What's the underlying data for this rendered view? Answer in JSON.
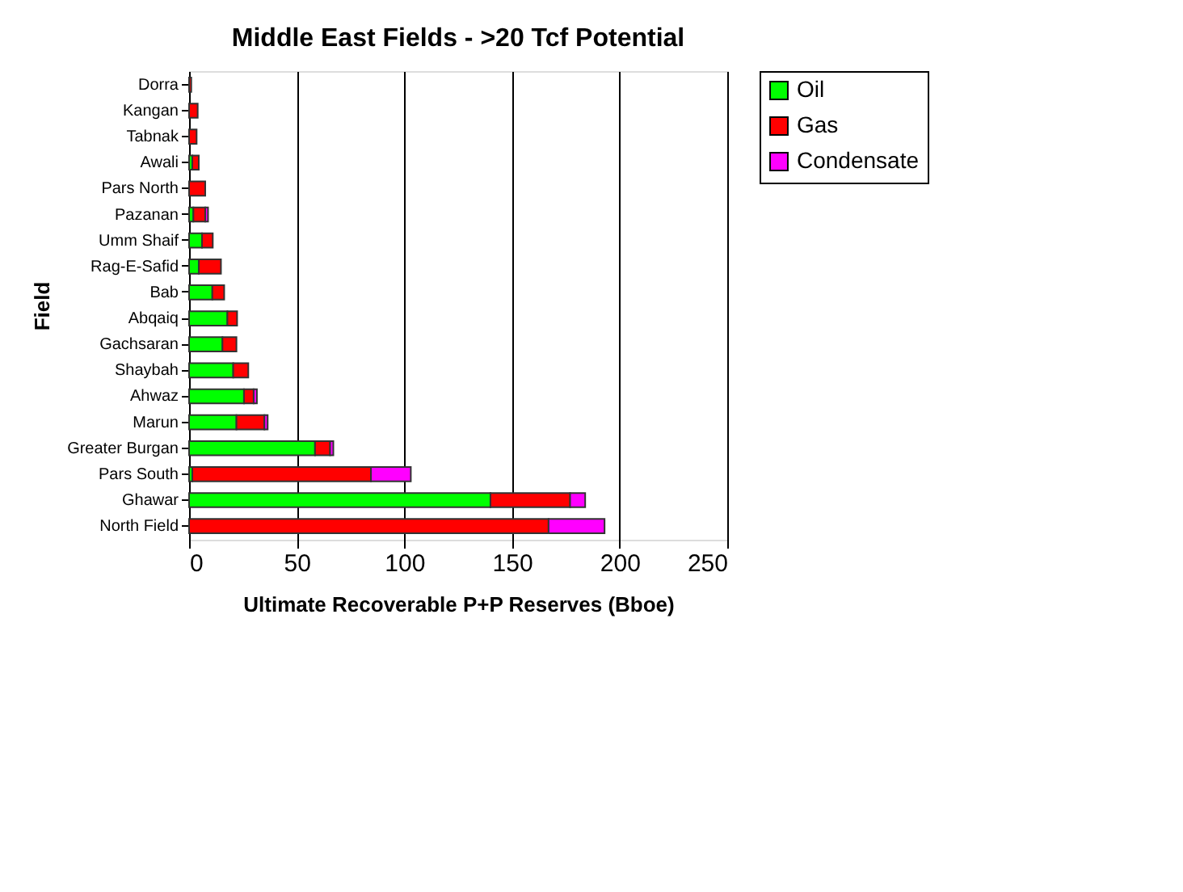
{
  "chart_data": {
    "type": "bar",
    "orientation": "horizontal",
    "stacked": true,
    "title": "Middle East Fields - >20 Tcf Potential",
    "xlabel": "Ultimate Recoverable P+P Reserves  (Bboe)",
    "ylabel": "Field",
    "categories": [
      "Dorra",
      "Kangan",
      "Tabnak",
      "Awali",
      "Pars North",
      "Pazanan",
      "Umm Shaif",
      "Rag-E-Safid",
      "Bab",
      "Abqaiq",
      "Gachsaran",
      "Shaybah",
      "Ahwaz",
      "Marun",
      "Greater Burgan",
      "Pars South",
      "Ghawar",
      "North Field"
    ],
    "series": [
      {
        "name": "Oil",
        "color": "#00ff00",
        "values": [
          null,
          0,
          0,
          1.5,
          0,
          2,
          6,
          4.5,
          10.8,
          17.8,
          15.5,
          20.5,
          25.5,
          22,
          58.5,
          1.5,
          140,
          0
        ]
      },
      {
        "name": "Gas",
        "color": "#ff0000",
        "values": [
          1,
          4,
          3.5,
          3,
          7.5,
          5.5,
          5,
          10.3,
          5.5,
          4.5,
          6.5,
          7,
          4.5,
          13,
          7,
          83,
          37,
          167
        ]
      },
      {
        "name": "Condensate",
        "color": "#ff00ff",
        "values": [
          0,
          0,
          0,
          0,
          0,
          1.3,
          0,
          0,
          0,
          0,
          0,
          0,
          1.5,
          1.5,
          1.5,
          18.5,
          7,
          26
        ]
      }
    ],
    "xlim": [
      0,
      250
    ],
    "xticks": [
      0,
      50,
      100,
      150,
      200,
      250
    ],
    "grid": "x",
    "legend": "right"
  }
}
